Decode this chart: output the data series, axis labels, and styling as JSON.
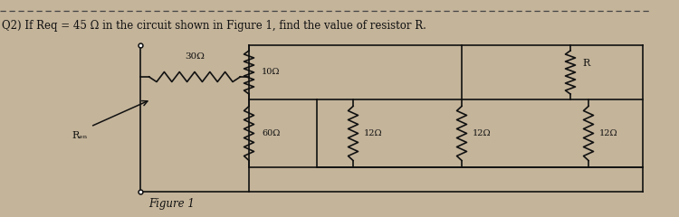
{
  "title": "Q2) If Req = 45 Ω in the circuit shown in Figure 1, find the value of resistor R.",
  "figure_label": "Figure 1",
  "background_color": "#c4b49a",
  "text_color": "#111111",
  "dashed_line_color": "#444444",
  "wire_color": "#111111",
  "resistor_color": "#111111",
  "R30": "30Ω",
  "R10": "10Ω",
  "R60": "60Ω",
  "R12a": "12Ω",
  "R12b": "12Ω",
  "R12c": "12Ω",
  "RR": "R",
  "Req_label": "Rₑₙ"
}
